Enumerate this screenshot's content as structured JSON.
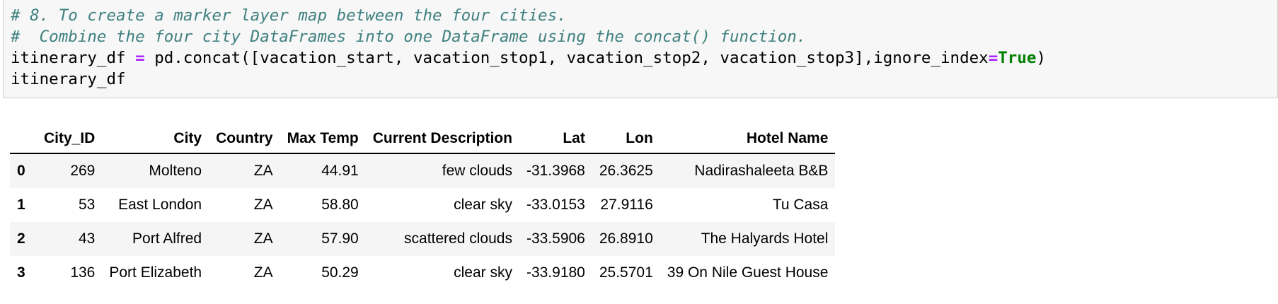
{
  "cell": {
    "comment_line1": "# 8. To create a marker layer map between the four cities.",
    "comment_line2": "#  Combine the four city DataFrames into one DataFrame using the concat() function.",
    "code_prefix": "itinerary_df ",
    "code_op": "=",
    "code_call": " pd.concat([vacation_start, vacation_stop1, vacation_stop2, vacation_stop3],ignore_index",
    "code_op2": "=",
    "code_kw": "True",
    "code_end": ")",
    "code_line4": "itinerary_df"
  },
  "table": {
    "index_header": "",
    "headers": [
      "City_ID",
      "City",
      "Country",
      "Max Temp",
      "Current Description",
      "Lat",
      "Lon",
      "Hotel Name"
    ],
    "rows": [
      {
        "index": "0",
        "cells": [
          "269",
          "Molteno",
          "ZA",
          "44.91",
          "few clouds",
          "-31.3968",
          "26.3625",
          "Nadirashaleeta B&B"
        ]
      },
      {
        "index": "1",
        "cells": [
          "53",
          "East London",
          "ZA",
          "58.80",
          "clear sky",
          "-33.0153",
          "27.9116",
          "Tu Casa"
        ]
      },
      {
        "index": "2",
        "cells": [
          "43",
          "Port Alfred",
          "ZA",
          "57.90",
          "scattered clouds",
          "-33.5906",
          "26.8910",
          "The Halyards Hotel"
        ]
      },
      {
        "index": "3",
        "cells": [
          "136",
          "Port Elizabeth",
          "ZA",
          "50.29",
          "clear sky",
          "-33.9180",
          "25.5701",
          "39 On Nile Guest House"
        ]
      }
    ]
  }
}
